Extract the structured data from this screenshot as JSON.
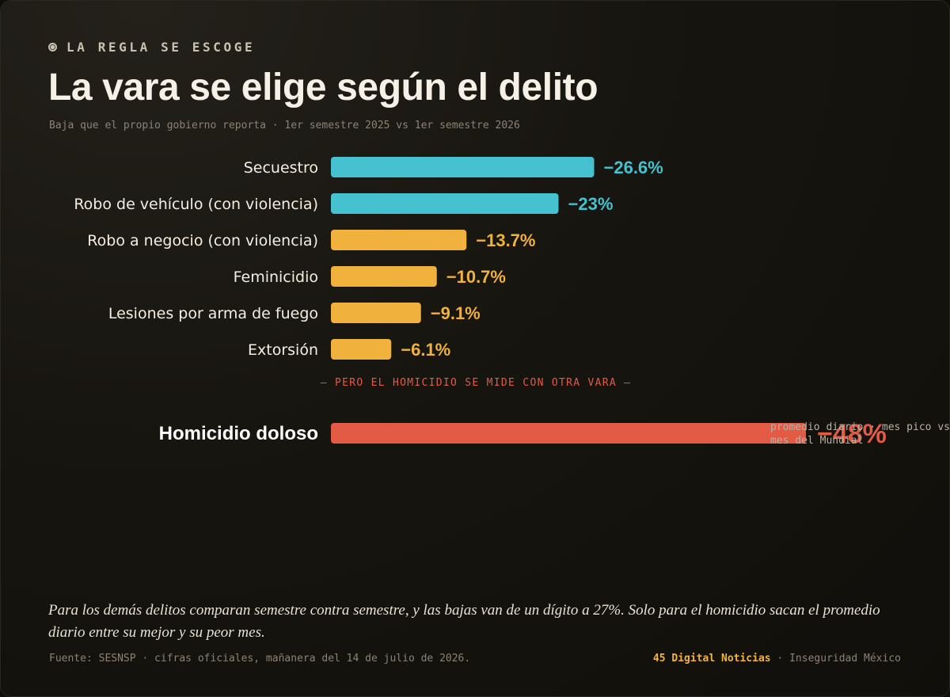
{
  "header": {
    "kicker": "LA REGLA SE ESCOGE",
    "title": "La vara se elige según el delito",
    "subtitle": "Baja que el propio gobierno reporta · 1er semestre 2025 vs 1er semestre 2026"
  },
  "chart_data": {
    "type": "bar",
    "orientation": "horizontal",
    "categories": [
      "Secuestro",
      "Robo de vehículo (con violencia)",
      "Robo a negocio (con violencia)",
      "Feminicidio",
      "Lesiones por arma de fuego",
      "Extorsión",
      "Homicidio doloso"
    ],
    "values": [
      -26.6,
      -23,
      -13.7,
      -10.7,
      -9.1,
      -6.1,
      -48
    ],
    "value_labels": [
      "−26.6%",
      "−23%",
      "−13.7%",
      "−10.7%",
      "−9.1%",
      "−6.1%",
      "−48%"
    ],
    "bar_colors": [
      "#45c1cf",
      "#45c1cf",
      "#f0b13d",
      "#f0b13d",
      "#f0b13d",
      "#f0b13d",
      "#e35a45"
    ],
    "divider_label": "— PERO EL HOMICIDIO SE MIDE CON OTRA VARA —",
    "highlight_note": [
      "promedio diario · mes pico vs",
      "mes del Mundial"
    ],
    "grid": false
  },
  "footer": {
    "note": "Para los demás delitos comparan semestre contra semestre, y las bajas van de un dígito a 27%. Solo para el homicidio sacan el promedio diario entre su mejor y su peor mes.",
    "source": "Fuente: SESNSP · cifras oficiales, mañanera del 14 de julio de 2026.",
    "brand_name": "45 Digital Noticias",
    "brand_rest": " · Inseguridad México"
  }
}
